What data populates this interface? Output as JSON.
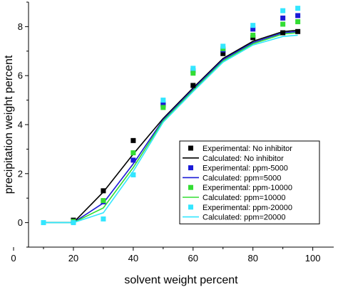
{
  "chart_data": {
    "type": "line",
    "title": "",
    "xlabel": "solvent weight percent",
    "ylabel": "precipitation weight percent",
    "xlim": [
      5,
      107
    ],
    "ylim": [
      -1,
      9
    ],
    "xticks": [
      0,
      20,
      40,
      60,
      80,
      100
    ],
    "yticks": [
      0,
      2,
      4,
      6,
      8
    ],
    "grid": false,
    "legend_position": "bottom-right",
    "series": [
      {
        "name": "Experimental: No inhibitor",
        "kind": "scatter",
        "color": "#000000",
        "x": [
          20,
          30,
          40,
          50,
          60,
          70,
          80,
          90,
          95
        ],
        "y": [
          0.1,
          1.3,
          3.35,
          4.8,
          5.6,
          6.9,
          7.55,
          7.75,
          7.8
        ]
      },
      {
        "name": "Calculated: No inhibitor",
        "kind": "line",
        "color": "#000000",
        "x": [
          10,
          20,
          30,
          40,
          50,
          60,
          70,
          80,
          90,
          95
        ],
        "y": [
          0,
          0,
          1.25,
          2.8,
          4.25,
          5.5,
          6.7,
          7.4,
          7.8,
          7.85
        ]
      },
      {
        "name": "Experimental: ppm-5000",
        "kind": "scatter",
        "color": "#1a1ad6",
        "x": [
          20,
          30,
          40,
          50,
          60,
          70,
          80,
          90,
          95
        ],
        "y": [
          0.05,
          0.85,
          2.55,
          4.85,
          6.2,
          7.05,
          7.9,
          8.35,
          8.45
        ]
      },
      {
        "name": "Calculated: ppm=5000",
        "kind": "line",
        "color": "#1a1ad6",
        "x": [
          10,
          20,
          30,
          40,
          50,
          60,
          70,
          80,
          90,
          95
        ],
        "y": [
          0,
          0,
          0.8,
          2.4,
          4.2,
          5.45,
          6.65,
          7.35,
          7.75,
          7.8
        ]
      },
      {
        "name": "Experimental: ppm-10000",
        "kind": "scatter",
        "color": "#33dd33",
        "x": [
          20,
          30,
          40,
          50,
          60,
          70,
          80,
          90,
          95
        ],
        "y": [
          0.05,
          0.9,
          2.85,
          4.7,
          6.1,
          7.1,
          7.65,
          8.1,
          8.2
        ]
      },
      {
        "name": "Calculated: ppm=10000",
        "kind": "line",
        "color": "#33dd33",
        "x": [
          10,
          20,
          30,
          40,
          50,
          60,
          70,
          80,
          90,
          95
        ],
        "y": [
          0,
          0,
          0.6,
          2.25,
          4.15,
          5.4,
          6.6,
          7.3,
          7.7,
          7.75
        ]
      },
      {
        "name": "Experimental: ppm-20000",
        "kind": "scatter",
        "color": "#33e6ff",
        "x": [
          10,
          20,
          30,
          40,
          50,
          60,
          70,
          80,
          90,
          95
        ],
        "y": [
          0,
          0,
          0.15,
          1.95,
          5.0,
          6.3,
          7.2,
          8.05,
          8.65,
          8.75
        ]
      },
      {
        "name": "Calculated: ppm=20000",
        "kind": "line",
        "color": "#33e6ff",
        "x": [
          10,
          20,
          30,
          40,
          50,
          60,
          70,
          80,
          90,
          95
        ],
        "y": [
          0,
          0,
          0.4,
          2.1,
          4.1,
          5.35,
          6.55,
          7.25,
          7.6,
          7.65
        ]
      }
    ]
  }
}
